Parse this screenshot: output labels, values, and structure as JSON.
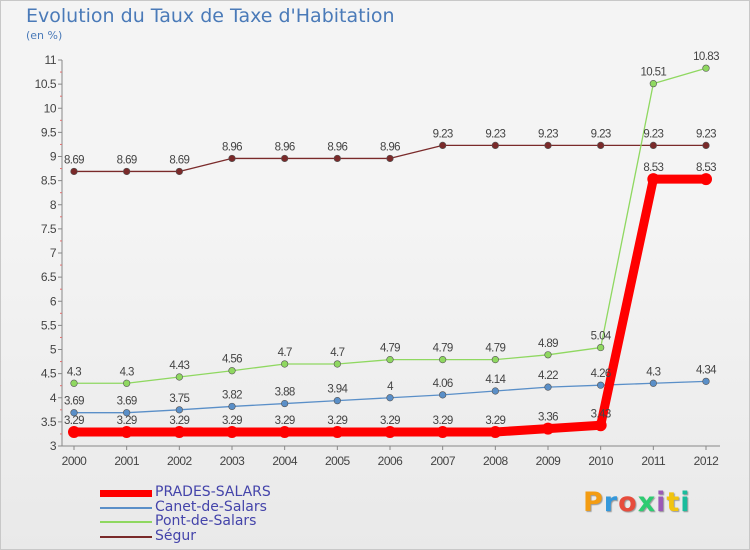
{
  "title": "Evolution du Taux de Taxe d'Habitation",
  "unit_label": "(en %)",
  "chart_data": {
    "type": "line",
    "title": "Evolution du Taux de Taxe d'Habitation",
    "ylabel": "(en %)",
    "x": [
      "2000",
      "2001",
      "2002",
      "2003",
      "2004",
      "2005",
      "2006",
      "2007",
      "2008",
      "2009",
      "2010",
      "2011",
      "2012"
    ],
    "ylim": [
      3,
      11
    ],
    "yticks": [
      "3",
      "3.5",
      "4",
      "4.5",
      "5",
      "5.5",
      "6",
      "6.5",
      "7",
      "7.5",
      "8",
      "8.5",
      "9",
      "9.5",
      "10",
      "10.5",
      "11"
    ],
    "grid": false,
    "legend_position": "bottom-left",
    "series": [
      {
        "name": "PRADES-SALARS",
        "color": "#ff0000",
        "values": [
          3.29,
          3.29,
          3.29,
          3.29,
          3.29,
          3.29,
          3.29,
          3.29,
          3.29,
          3.36,
          3.43,
          8.53,
          8.53
        ],
        "labels": [
          "3.29",
          "3.29",
          "3.29",
          "3.29",
          "3.29",
          "3.29",
          "3.29",
          "3.29",
          "3.29",
          "3.36",
          "3.43",
          "8.53",
          "8.53"
        ]
      },
      {
        "name": "Canet-de-Salars",
        "color": "#5a8fc8",
        "values": [
          3.69,
          3.69,
          3.75,
          3.82,
          3.88,
          3.94,
          4.0,
          4.06,
          4.14,
          4.22,
          4.26,
          4.3,
          4.34
        ],
        "labels": [
          "3.69",
          "3.69",
          "3.75",
          "3.82",
          "3.88",
          "3.94",
          "4",
          "4.06",
          "4.14",
          "4.22",
          "4.26",
          "4.3",
          "4.34"
        ]
      },
      {
        "name": "Pont-de-Salars",
        "color": "#8fd860",
        "values": [
          4.3,
          4.3,
          4.43,
          4.56,
          4.7,
          4.7,
          4.79,
          4.79,
          4.79,
          4.89,
          5.04,
          10.51,
          10.83
        ],
        "labels": [
          "4.3",
          "4.3",
          "4.43",
          "4.56",
          "4.7",
          "4.7",
          "4.79",
          "4.79",
          "4.79",
          "4.89",
          "5.04",
          "10.51",
          "10.83"
        ]
      },
      {
        "name": "Ségur",
        "color": "#7a2a2a",
        "values": [
          8.69,
          8.69,
          8.69,
          8.96,
          8.96,
          8.96,
          8.96,
          9.23,
          9.23,
          9.23,
          9.23,
          9.23,
          9.23
        ],
        "labels": [
          "8.69",
          "8.69",
          "8.69",
          "8.96",
          "8.96",
          "8.96",
          "8.96",
          "9.23",
          "9.23",
          "9.23",
          "9.23",
          "9.23",
          "9.23"
        ]
      }
    ]
  },
  "logo": {
    "text": "Proxiti",
    "colors": [
      "#f39c12",
      "#3498db",
      "#e74c3c",
      "#2ecc71",
      "#9b59b6",
      "#f1c40f",
      "#1abc9c"
    ]
  }
}
